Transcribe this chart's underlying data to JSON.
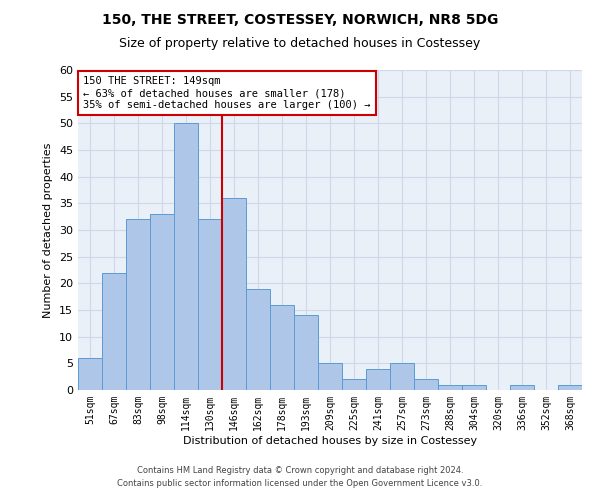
{
  "title": "150, THE STREET, COSTESSEY, NORWICH, NR8 5DG",
  "subtitle": "Size of property relative to detached houses in Costessey",
  "xlabel": "Distribution of detached houses by size in Costessey",
  "ylabel": "Number of detached properties",
  "categories": [
    "51sqm",
    "67sqm",
    "83sqm",
    "98sqm",
    "114sqm",
    "130sqm",
    "146sqm",
    "162sqm",
    "178sqm",
    "193sqm",
    "209sqm",
    "225sqm",
    "241sqm",
    "257sqm",
    "273sqm",
    "288sqm",
    "304sqm",
    "320sqm",
    "336sqm",
    "352sqm",
    "368sqm"
  ],
  "values": [
    6,
    22,
    32,
    33,
    50,
    32,
    36,
    19,
    16,
    14,
    5,
    2,
    4,
    5,
    2,
    1,
    1,
    0,
    1,
    0,
    1
  ],
  "bar_color": "#aec6e8",
  "bar_edge_color": "#5b9bd5",
  "vline_x_index": 5.5,
  "vline_color": "#cc0000",
  "annotation_text": "150 THE STREET: 149sqm\n← 63% of detached houses are smaller (178)\n35% of semi-detached houses are larger (100) →",
  "annotation_box_color": "#ffffff",
  "annotation_box_edge": "#cc0000",
  "ylim": [
    0,
    60
  ],
  "yticks": [
    0,
    5,
    10,
    15,
    20,
    25,
    30,
    35,
    40,
    45,
    50,
    55,
    60
  ],
  "grid_color": "#d0d8e8",
  "background_color": "#eaf0f8",
  "footer_line1": "Contains HM Land Registry data © Crown copyright and database right 2024.",
  "footer_line2": "Contains public sector information licensed under the Open Government Licence v3.0.",
  "title_fontsize": 10,
  "subtitle_fontsize": 9,
  "ylabel_fontsize": 8,
  "xlabel_fontsize": 8,
  "tick_fontsize": 7,
  "annotation_fontsize": 7.5,
  "footer_fontsize": 6
}
